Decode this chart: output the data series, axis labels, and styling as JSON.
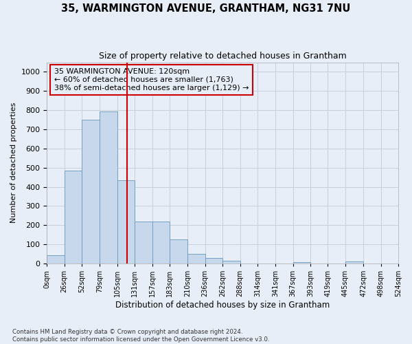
{
  "title": "35, WARMINGTON AVENUE, GRANTHAM, NG31 7NU",
  "subtitle": "Size of property relative to detached houses in Grantham",
  "xlabel": "Distribution of detached houses by size in Grantham",
  "ylabel": "Number of detached properties",
  "bar_edges": [
    0,
    26,
    52,
    79,
    105,
    131,
    157,
    183,
    210,
    236,
    262,
    288,
    314,
    341,
    367,
    393,
    419,
    445,
    472,
    498,
    524
  ],
  "bar_heights": [
    42,
    485,
    750,
    795,
    435,
    220,
    220,
    125,
    50,
    28,
    15,
    0,
    0,
    0,
    8,
    0,
    0,
    10,
    0,
    0
  ],
  "bar_color": "#c8d8ec",
  "bar_edge_color": "#6699bb",
  "property_size": 120,
  "vline_color": "#cc0000",
  "annotation_box_color": "#cc0000",
  "annotation_line1": "35 WARMINGTON AVENUE: 120sqm",
  "annotation_line2": "← 60% of detached houses are smaller (1,763)",
  "annotation_line3": "38% of semi-detached houses are larger (1,129) →",
  "ylim": [
    0,
    1050
  ],
  "yticks": [
    0,
    100,
    200,
    300,
    400,
    500,
    600,
    700,
    800,
    900,
    1000
  ],
  "grid_color": "#c8d0dc",
  "bg_color": "#e8eef8",
  "footer_line1": "Contains HM Land Registry data © Crown copyright and database right 2024.",
  "footer_line2": "Contains public sector information licensed under the Open Government Licence v3.0."
}
